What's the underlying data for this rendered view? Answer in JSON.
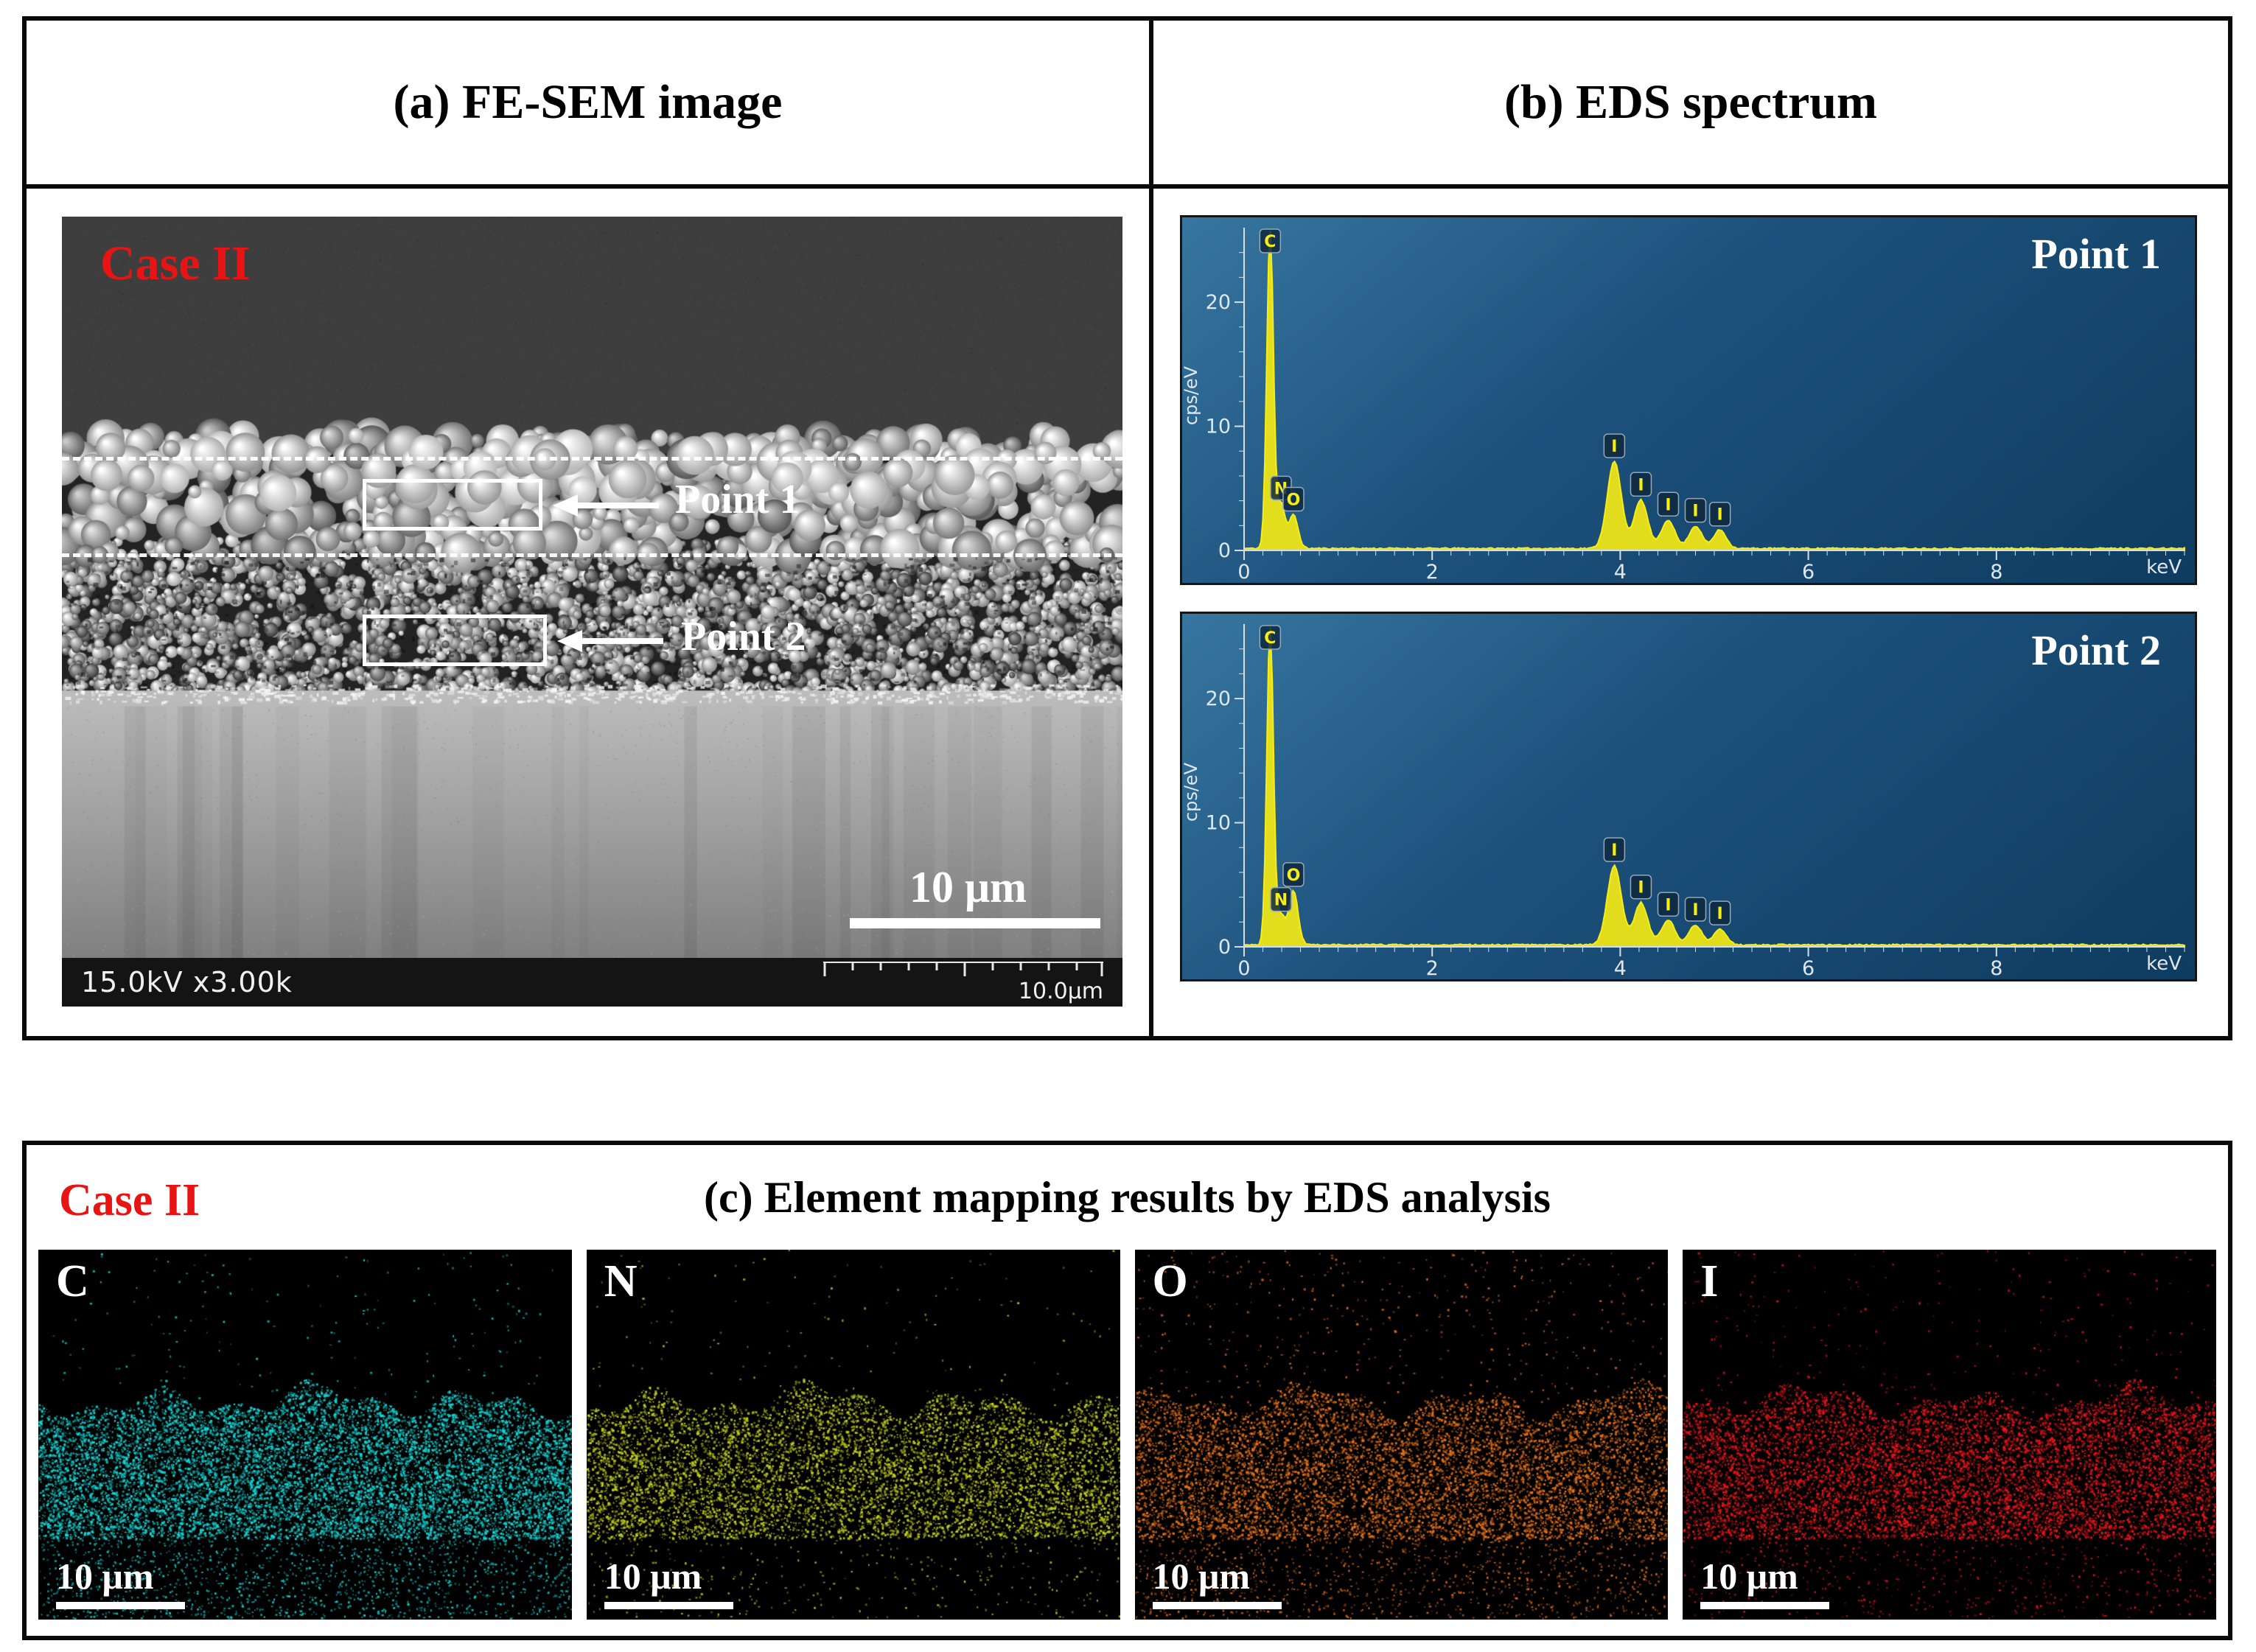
{
  "panel_a": {
    "title": "(a) FE-SEM image",
    "case_label": "Case II",
    "points": [
      {
        "label": "Point 1"
      },
      {
        "label": "Point 2"
      }
    ],
    "scale_label": "10 μm",
    "status_left": "15.0kV x3.00k",
    "status_right": "10.0μm"
  },
  "panel_b": {
    "title": "(b) EDS spectrum"
  },
  "panel_c": {
    "case_label": "Case II",
    "title": "(c) Element mapping results by EDS analysis",
    "maps": [
      {
        "element": "C",
        "color": "#17d6d6",
        "scale_label": "10 μm"
      },
      {
        "element": "N",
        "color": "#c3d021",
        "scale_label": "10 μm"
      },
      {
        "element": "O",
        "color": "#e6731c",
        "scale_label": "10 μm"
      },
      {
        "element": "I",
        "color": "#e8161c",
        "scale_label": "10 μm"
      }
    ]
  },
  "chart_data": [
    {
      "type": "line",
      "title": "Point 1",
      "xlabel": "keV",
      "ylabel": "cps/eV",
      "xlim": [
        0,
        10
      ],
      "ylim": [
        0,
        26
      ],
      "xticks": [
        0,
        2,
        4,
        6,
        8
      ],
      "yticks": [
        0,
        10,
        20
      ],
      "line_color": "#f7ec13",
      "background": [
        "#36769f",
        "#0e3c60"
      ],
      "legend": "none",
      "grid": false,
      "peaks": [
        {
          "element": "C",
          "kev": 0.277,
          "height": 26.0,
          "sigma": 0.035,
          "labeled": true
        },
        {
          "element": "N",
          "kev": 0.392,
          "height": 3.6,
          "sigma": 0.042,
          "labeled": true
        },
        {
          "element": "O",
          "kev": 0.525,
          "height": 2.7,
          "sigma": 0.048,
          "labeled": true
        },
        {
          "element": "I",
          "kev": 3.937,
          "height": 7.0,
          "sigma": 0.075,
          "labeled": true
        },
        {
          "element": "I",
          "kev": 4.22,
          "height": 3.9,
          "sigma": 0.072,
          "labeled": true
        },
        {
          "element": "I",
          "kev": 4.51,
          "height": 2.3,
          "sigma": 0.07,
          "labeled": true
        },
        {
          "element": "I",
          "kev": 4.8,
          "height": 1.8,
          "sigma": 0.068,
          "labeled": true
        },
        {
          "element": "I",
          "kev": 5.06,
          "height": 1.5,
          "sigma": 0.066,
          "labeled": true
        }
      ]
    },
    {
      "type": "line",
      "title": "Point 2",
      "xlabel": "keV",
      "ylabel": "cps/eV",
      "xlim": [
        0,
        10
      ],
      "ylim": [
        0,
        26
      ],
      "xticks": [
        0,
        2,
        4,
        6,
        8
      ],
      "yticks": [
        0,
        10,
        20
      ],
      "line_color": "#f7ec13",
      "background": [
        "#36769f",
        "#0e3c60"
      ],
      "legend": "none",
      "grid": false,
      "peaks": [
        {
          "element": "C",
          "kev": 0.277,
          "height": 26.0,
          "sigma": 0.035,
          "labeled": true
        },
        {
          "element": "N",
          "kev": 0.392,
          "height": 2.4,
          "sigma": 0.042,
          "labeled": true
        },
        {
          "element": "O",
          "kev": 0.525,
          "height": 4.4,
          "sigma": 0.048,
          "labeled": true
        },
        {
          "element": "I",
          "kev": 3.937,
          "height": 6.4,
          "sigma": 0.075,
          "labeled": true
        },
        {
          "element": "I",
          "kev": 4.22,
          "height": 3.4,
          "sigma": 0.072,
          "labeled": true
        },
        {
          "element": "I",
          "kev": 4.51,
          "height": 2.0,
          "sigma": 0.07,
          "labeled": true
        },
        {
          "element": "I",
          "kev": 4.8,
          "height": 1.6,
          "sigma": 0.068,
          "labeled": true
        },
        {
          "element": "I",
          "kev": 5.06,
          "height": 1.3,
          "sigma": 0.066,
          "labeled": true
        }
      ]
    }
  ]
}
